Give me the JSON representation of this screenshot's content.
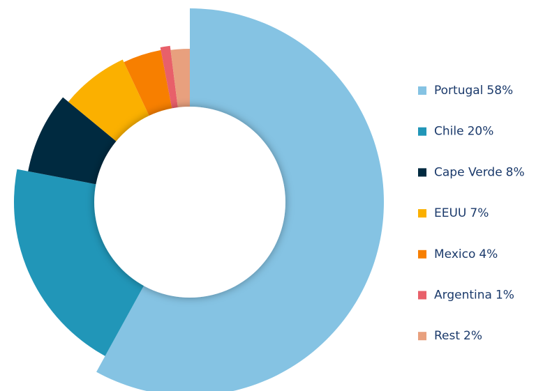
{
  "chart_data": {
    "type": "donut",
    "categories": [
      "Portugal",
      "Chile",
      "Cape Verde",
      "EEUU",
      "Mexico",
      "Argentina",
      "Rest"
    ],
    "values": [
      58,
      20,
      8,
      7,
      4,
      1,
      2
    ],
    "value_labels": [
      "58%",
      "20%",
      "8%",
      "7%",
      "4%",
      "1%",
      "2%"
    ],
    "colors": [
      "#85c3e3",
      "#2196b8",
      "#002a40",
      "#fbb000",
      "#f77f00",
      "#e8606a",
      "#e8a07e"
    ],
    "legend": "right"
  }
}
